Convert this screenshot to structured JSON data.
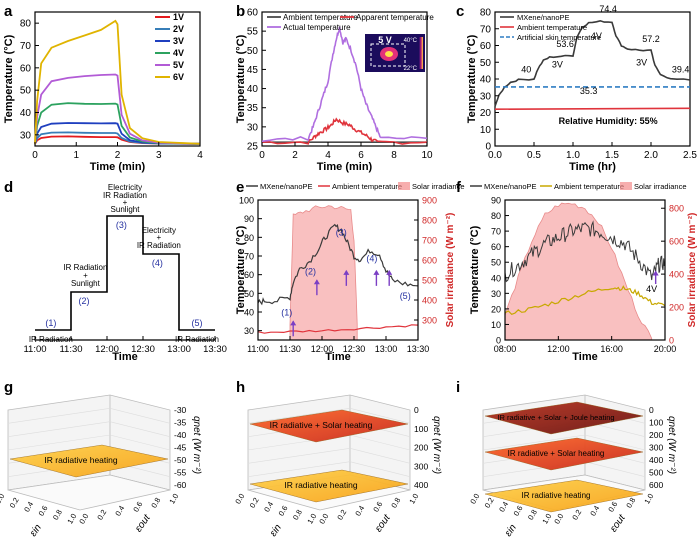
{
  "figure": {
    "description_free": true,
    "panels": [
      "a",
      "b",
      "c",
      "d",
      "e",
      "f",
      "g",
      "h",
      "i"
    ]
  },
  "chart_data": [
    {
      "id": "a",
      "type": "line",
      "xlabel": "Time (min)",
      "ylabel": "Temperature (°C)",
      "xlim": [
        0,
        4
      ],
      "ylim": [
        25,
        85
      ],
      "xticks": [
        "0",
        "1",
        "2",
        "3",
        "4"
      ],
      "yticks": [
        "30",
        "40",
        "50",
        "60",
        "70",
        "80"
      ],
      "series": [
        {
          "name": "1V",
          "color": "#e41a1c",
          "x": [
            0,
            0.05,
            0.15,
            0.4,
            0.8,
            1.2,
            1.6,
            1.95,
            2.0,
            2.1,
            2.3,
            2.6,
            3.0,
            4.0
          ],
          "y": [
            26,
            27.5,
            28.6,
            29.2,
            29.3,
            29.1,
            29.0,
            29.0,
            28.9,
            27.8,
            26.8,
            26.3,
            26.1,
            26.0
          ]
        },
        {
          "name": "2V",
          "color": "#377eb8",
          "x": [
            0,
            0.05,
            0.15,
            0.4,
            0.8,
            1.2,
            1.6,
            1.95,
            2.0,
            2.1,
            2.3,
            2.6,
            3.0,
            4.0
          ],
          "y": [
            26,
            28.5,
            30.3,
            31.0,
            31.1,
            30.9,
            30.8,
            30.8,
            30.6,
            28.6,
            27.0,
            26.4,
            26.1,
            26.0
          ]
        },
        {
          "name": "3V",
          "color": "#1f3fbf",
          "x": [
            0,
            0.05,
            0.15,
            0.4,
            0.8,
            1.2,
            1.6,
            1.95,
            2.0,
            2.1,
            2.3,
            2.6,
            3.0,
            4.0
          ],
          "y": [
            26,
            30.5,
            33.5,
            35.0,
            35.3,
            35.2,
            35.1,
            35.2,
            35.0,
            30.5,
            27.6,
            26.6,
            26.2,
            26.0
          ]
        },
        {
          "name": "4V",
          "color": "#2ca25f",
          "x": [
            0,
            0.05,
            0.15,
            0.4,
            0.8,
            1.2,
            1.6,
            1.95,
            2.0,
            2.1,
            2.3,
            2.6,
            3.0,
            4.0
          ],
          "y": [
            26,
            34.0,
            40.0,
            43.5,
            44.2,
            43.9,
            43.8,
            44.0,
            43.6,
            34.0,
            28.8,
            27.0,
            26.3,
            26.0
          ]
        },
        {
          "name": "5V",
          "color": "#b25bd6",
          "x": [
            0,
            0.05,
            0.15,
            0.4,
            0.8,
            1.2,
            1.6,
            1.95,
            2.0,
            2.1,
            2.3,
            2.6,
            3.0,
            4.0
          ],
          "y": [
            26,
            38.0,
            48.0,
            54.0,
            55.5,
            56.3,
            56.8,
            57.0,
            56.5,
            39.0,
            30.5,
            27.5,
            26.5,
            26.0
          ]
        },
        {
          "name": "6V",
          "color": "#e0b400",
          "x": [
            0,
            0.05,
            0.15,
            0.4,
            0.8,
            1.2,
            1.6,
            1.95,
            2.0,
            2.1,
            2.3,
            2.6,
            3.0,
            4.0
          ],
          "y": [
            26,
            45.0,
            62.0,
            69.0,
            72.0,
            74.5,
            77.0,
            81.0,
            79.5,
            48.0,
            33.0,
            28.5,
            26.8,
            26.0
          ]
        }
      ]
    },
    {
      "id": "b",
      "type": "line",
      "xlabel": "Time (min)",
      "ylabel": "Temperature (°C)",
      "xlim": [
        0,
        10
      ],
      "ylim": [
        25,
        60
      ],
      "xticks": [
        "0",
        "2",
        "4",
        "6",
        "8",
        "10"
      ],
      "yticks": [
        "25",
        "30",
        "35",
        "40",
        "45",
        "50",
        "55",
        "60"
      ],
      "inset": {
        "label": "5 V",
        "scale_max": "40°C",
        "scale_min": "22°C"
      },
      "series": [
        {
          "name": "Ambient temperature",
          "color": "#4a4a4a",
          "x": [
            0,
            10
          ],
          "y": [
            26,
            26
          ]
        },
        {
          "name": "Apparent temperature",
          "color": "#e0343c",
          "x": [
            0,
            2.8,
            3.2,
            3.5,
            3.9,
            4.2,
            4.5,
            4.9,
            5.3,
            5.6,
            6.0,
            6.4,
            6.7,
            7.0,
            10
          ],
          "y": [
            26,
            26,
            27.5,
            28.5,
            29.5,
            30.5,
            32,
            31,
            30.5,
            29.5,
            28.5,
            27.5,
            26.5,
            26,
            26
          ]
        },
        {
          "name": "Actual temperature",
          "color": "#b06fe0",
          "x": [
            0,
            2.8,
            3.1,
            3.4,
            3.7,
            4.0,
            4.3,
            4.5,
            4.7,
            4.9,
            5.1,
            5.4,
            5.7,
            6.0,
            6.3,
            6.6,
            6.9,
            7.2,
            10
          ],
          "y": [
            26.5,
            27,
            30,
            34,
            38,
            42,
            49,
            53,
            56,
            52,
            53,
            50,
            46,
            40,
            36,
            33,
            30,
            27,
            27
          ]
        }
      ]
    },
    {
      "id": "c",
      "type": "line",
      "xlabel": "Time (hr)",
      "ylabel": "Temperature (°C)",
      "xlim": [
        0,
        2.5
      ],
      "ylim": [
        0,
        80
      ],
      "xticks": [
        "0.0",
        "0.5",
        "1.0",
        "1.5",
        "2.0",
        "2.5"
      ],
      "yticks": [
        "0",
        "10",
        "20",
        "30",
        "40",
        "50",
        "60",
        "70",
        "80"
      ],
      "annotations": [
        "40",
        "53.6",
        "74.4",
        "57.2",
        "39.4",
        "35.3",
        "3V",
        "4V",
        "3V",
        "Relative Humidity: 55%"
      ],
      "series": [
        {
          "name": "MXene/nanoPE",
          "color": "#3a3a3a",
          "x": [
            0,
            0.05,
            0.12,
            0.2,
            0.3,
            0.5,
            0.55,
            0.62,
            0.7,
            0.85,
            1.0,
            1.05,
            1.12,
            1.2,
            1.35,
            1.5,
            1.55,
            1.62,
            1.7,
            1.85,
            2.0,
            2.05,
            2.12,
            2.25,
            2.5
          ],
          "y": [
            24,
            30,
            35,
            38,
            39.5,
            40,
            46,
            51,
            53,
            53.6,
            54,
            65,
            71,
            73.5,
            74.4,
            74,
            66,
            60,
            58,
            57.2,
            57,
            48,
            43,
            40,
            39.4
          ]
        },
        {
          "name": "Ambient temperature",
          "color": "#e0343c",
          "x": [
            0,
            2.5
          ],
          "y": [
            22,
            22.5
          ]
        },
        {
          "name": "Artificial skin temperature",
          "color": "#2e7dc3",
          "x": [
            0,
            2.5
          ],
          "y": [
            35.3,
            35.3
          ]
        }
      ]
    },
    {
      "id": "d",
      "type": "line",
      "xlabel": "Time",
      "xticks": [
        "11:00",
        "11:30",
        "12:00",
        "12:30",
        "13:00",
        "13:30"
      ],
      "annotations": [
        "IR Radiation",
        "(1)",
        "IR Radiation + Sunlight",
        "(2)",
        "Electricity + IR Radiation + Sunlight",
        "(3)",
        "Electricity + IR Radiation",
        "(4)",
        "IR Radiation",
        "(5)"
      ],
      "series": [
        {
          "name": "step",
          "color": "#000000",
          "x": [
            0,
            0.5,
            0.5,
            1,
            1,
            1.5,
            1.5,
            2,
            2,
            2.5
          ],
          "y": [
            1,
            1,
            2,
            2,
            4,
            4,
            3,
            3,
            1,
            1
          ]
        }
      ]
    },
    {
      "id": "e",
      "type": "line",
      "xlabel": "Time",
      "ylabel": "Temperature (°C)",
      "y2label": "Solar irradiance (W m⁻²)",
      "xlim": [
        0,
        2.5
      ],
      "ylim": [
        25,
        100
      ],
      "y2lim": [
        200,
        900
      ],
      "xticks": [
        "11:00",
        "11:30",
        "12:00",
        "12:30",
        "13:00",
        "13:30"
      ],
      "yticks": [
        "30",
        "40",
        "50",
        "60",
        "70",
        "80",
        "90",
        "100"
      ],
      "y2ticks": [
        "300",
        "400",
        "500",
        "600",
        "700",
        "800",
        "900"
      ],
      "annotations": [
        "(1)",
        "(2)",
        "(3)",
        "(4)",
        "(5)"
      ],
      "series": [
        {
          "name": "MXene/nanoPE",
          "color": "#3a3a3a",
          "x": [
            0,
            0.1,
            0.3,
            0.5,
            0.55,
            0.65,
            0.8,
            0.95,
            1.05,
            1.2,
            1.3,
            1.4,
            1.5,
            1.6,
            1.75,
            1.9,
            2.0,
            2.1,
            2.3,
            2.5
          ],
          "y": [
            45,
            46,
            46,
            48,
            56,
            63,
            67,
            74,
            80,
            86,
            84,
            77,
            70,
            68,
            73,
            71,
            62,
            57,
            55,
            54
          ]
        },
        {
          "name": "Ambient temperature",
          "color": "#e0343c",
          "x": [
            0,
            0.5,
            1.0,
            1.5,
            2.0,
            2.5
          ],
          "y": [
            29,
            29.5,
            30,
            31,
            32,
            33
          ]
        },
        {
          "name": "Solar irradiance",
          "color": "#f4a6a6",
          "x": [
            0.5,
            0.55,
            0.7,
            0.9,
            1.1,
            1.3,
            1.45,
            1.5,
            1.55
          ],
          "y2": [
            280,
            820,
            840,
            860,
            870,
            860,
            850,
            700,
            280
          ]
        }
      ]
    },
    {
      "id": "f",
      "type": "line",
      "xlabel": "Time",
      "ylabel": "Temperature (°C)",
      "y2label": "Solar irradiance (W m⁻²)",
      "xlim": [
        0,
        12
      ],
      "ylim": [
        0,
        90
      ],
      "y2lim": [
        0,
        850
      ],
      "xticks": [
        "08:00",
        "12:00",
        "16:00",
        "20:00"
      ],
      "yticks": [
        "0",
        "10",
        "20",
        "30",
        "40",
        "50",
        "60",
        "70",
        "80",
        "90"
      ],
      "y2ticks": [
        "0",
        "200",
        "400",
        "600",
        "800"
      ],
      "annotations": [
        "4V"
      ],
      "series": [
        {
          "name": "MXene/nanoPE",
          "color": "#3a3a3a",
          "x": [
            0,
            1,
            2,
            3,
            4,
            5,
            6,
            7,
            8,
            9,
            10,
            11,
            11.5,
            12
          ],
          "y": [
            42,
            48,
            55,
            62,
            66,
            70,
            72,
            70,
            66,
            62,
            52,
            40,
            48,
            50
          ]
        },
        {
          "name": "Ambient temperature",
          "color": "#c8a800",
          "x": [
            0,
            2,
            4,
            6,
            8,
            9,
            10,
            11,
            12
          ],
          "y": [
            17,
            20,
            25,
            30,
            34,
            33,
            30,
            24,
            22
          ]
        },
        {
          "name": "Solar irradiance",
          "color": "#f4a6a6",
          "x": [
            0,
            1,
            2,
            3,
            4,
            5,
            6,
            7,
            8,
            9,
            10,
            11
          ],
          "y2": [
            150,
            380,
            600,
            760,
            820,
            830,
            800,
            720,
            560,
            350,
            150,
            10
          ]
        }
      ]
    },
    {
      "id": "g",
      "type": "surface",
      "xlabel": "εin",
      "ylabel": "εout",
      "zlabel": "qnet (W m⁻²)",
      "xticks": [
        "0.0",
        "0.2",
        "0.4",
        "0.6",
        "0.8",
        "1.0"
      ],
      "yticks": [
        "0.0",
        "0.2",
        "0.4",
        "0.6",
        "0.8",
        "1.0"
      ],
      "zticks": [
        "-30",
        "-35",
        "-40",
        "-45",
        "-50",
        "-55",
        "-60"
      ],
      "surfaces": [
        "IR radiative heating"
      ]
    },
    {
      "id": "h",
      "type": "surface",
      "xlabel": "εin",
      "ylabel": "εout",
      "zlabel": "qnet (W m⁻²)",
      "xticks": [
        "0.0",
        "0.2",
        "0.4",
        "0.6",
        "0.8",
        "1.0"
      ],
      "yticks": [
        "0.0",
        "0.2",
        "0.4",
        "0.6",
        "0.8",
        "1.0"
      ],
      "zticks": [
        "0",
        "100",
        "200",
        "300",
        "400"
      ],
      "surfaces": [
        "IR radiative + Solar heating",
        "IR radiative heating"
      ]
    },
    {
      "id": "i",
      "type": "surface",
      "xlabel": "εin",
      "ylabel": "εout",
      "zlabel": "qnet (W m⁻²)",
      "xticks": [
        "0.0",
        "0.2",
        "0.4",
        "0.6",
        "0.8",
        "1.0"
      ],
      "yticks": [
        "0.0",
        "0.2",
        "0.4",
        "0.6",
        "0.8",
        "1.0"
      ],
      "zticks": [
        "0",
        "100",
        "200",
        "300",
        "400",
        "500",
        "600"
      ],
      "surfaces": [
        "IR radiative + Solar + Joule heating",
        "IR radiative + Solar heating",
        "IR radiative heating"
      ]
    }
  ]
}
